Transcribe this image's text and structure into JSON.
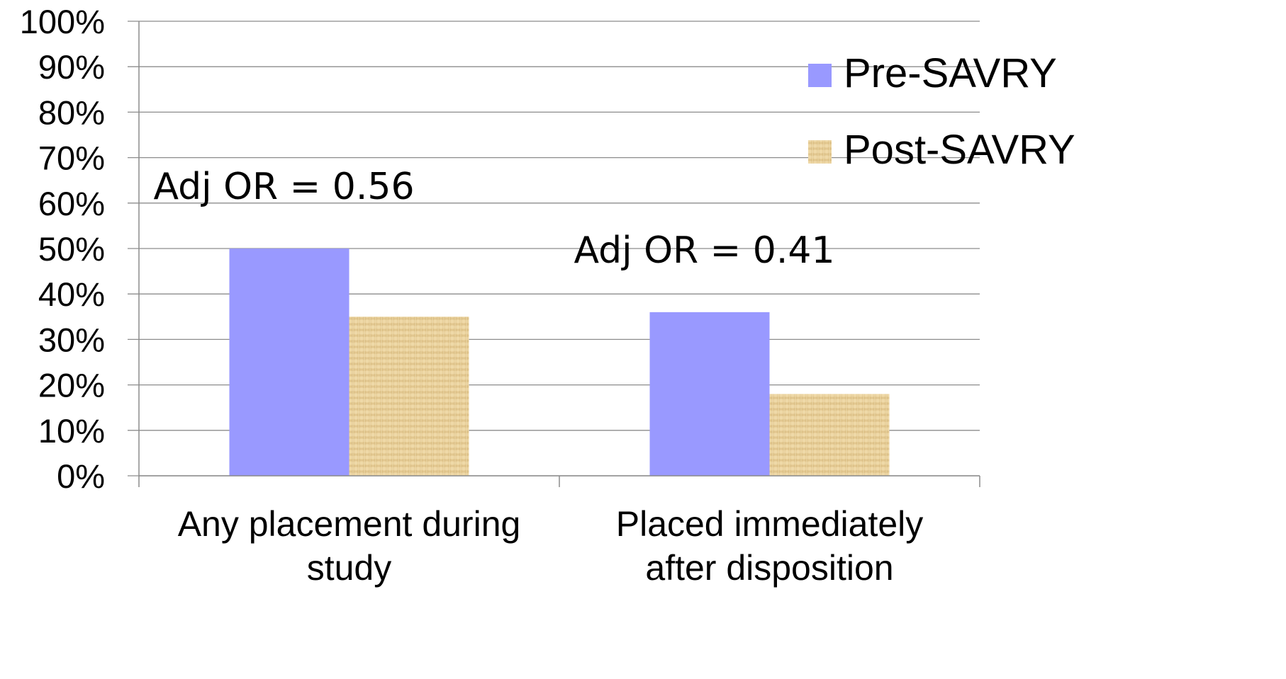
{
  "chart_data": {
    "type": "bar",
    "categories": [
      [
        "Any placement during",
        "study"
      ],
      [
        "Placed immediately",
        "after disposition"
      ]
    ],
    "series": [
      {
        "name": "Pre-SAVRY",
        "values": [
          50,
          36
        ],
        "color": "#9999ff",
        "fill": "solid"
      },
      {
        "name": "Post-SAVRY",
        "values": [
          35,
          18
        ],
        "color": "#e8cf9a",
        "fill": "burlap-texture"
      }
    ],
    "ylim": [
      0,
      100
    ],
    "yticks": [
      "0%",
      "10%",
      "20%",
      "30%",
      "40%",
      "50%",
      "60%",
      "70%",
      "80%",
      "90%",
      "100%"
    ],
    "grid": true,
    "legend_position": "top-right",
    "annotations": [
      {
        "text": "Adj OR = 0.56",
        "category_index": 0
      },
      {
        "text": "Adj OR = 0.41",
        "category_index": 1
      }
    ]
  }
}
